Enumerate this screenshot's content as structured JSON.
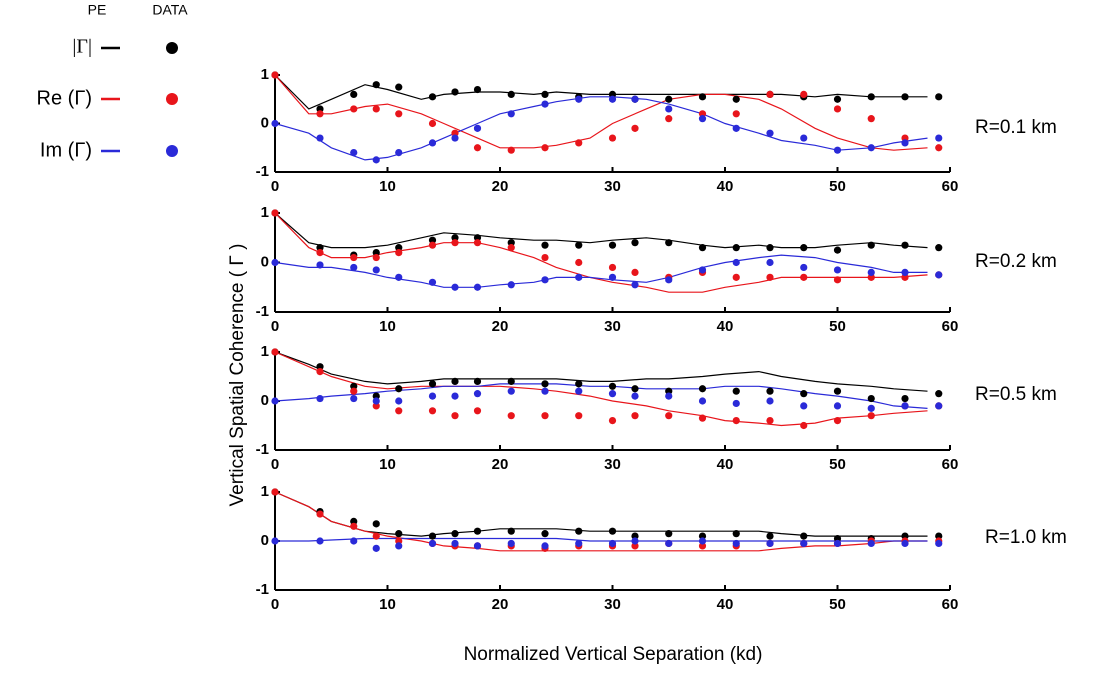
{
  "legend": {
    "pe_header": "PE",
    "data_header": "DATA",
    "entries": [
      {
        "label": "|Γ|",
        "color": "#000000"
      },
      {
        "label": "Re (Γ)",
        "color": "#e8151b"
      },
      {
        "label": "Im (Γ)",
        "color": "#2a2ad8"
      }
    ]
  },
  "ylabel": "Vertical Spatial Coherence ( Γ )",
  "xlabel": "Normalized Vertical Separation (kd)",
  "chart_data": [
    {
      "type": "line",
      "annotation": "R=0.1 km",
      "xlim": [
        0,
        60
      ],
      "ylim": [
        -1,
        1
      ],
      "xticks": [
        0,
        10,
        20,
        30,
        40,
        50,
        60
      ],
      "yticks": [
        -1,
        0,
        1
      ],
      "x": [
        0,
        3,
        5,
        8,
        10,
        13,
        15,
        18,
        20,
        23,
        25,
        28,
        30,
        33,
        35,
        38,
        40,
        43,
        45,
        48,
        50,
        53,
        55,
        58
      ],
      "series": [
        {
          "color": "#000000",
          "values": [
            1,
            0.3,
            0.5,
            0.8,
            0.7,
            0.5,
            0.6,
            0.65,
            0.65,
            0.6,
            0.65,
            0.6,
            0.6,
            0.6,
            0.6,
            0.6,
            0.6,
            0.6,
            0.6,
            0.55,
            0.6,
            0.55,
            0.55,
            0.55
          ]
        },
        {
          "color": "#e8151b",
          "values": [
            1,
            0.2,
            0.2,
            0.35,
            0.4,
            0.2,
            0,
            -0.3,
            -0.5,
            -0.5,
            -0.45,
            -0.3,
            0,
            0.3,
            0.5,
            0.6,
            0.6,
            0.5,
            0.3,
            -0.1,
            -0.3,
            -0.5,
            -0.55,
            -0.5
          ]
        },
        {
          "color": "#2a2ad8",
          "values": [
            0,
            -0.2,
            -0.5,
            -0.75,
            -0.7,
            -0.5,
            -0.3,
            0,
            0.2,
            0.35,
            0.45,
            0.55,
            0.55,
            0.5,
            0.4,
            0.2,
            0,
            -0.2,
            -0.35,
            -0.45,
            -0.55,
            -0.5,
            -0.4,
            -0.3
          ]
        }
      ],
      "points": {
        "x": [
          0,
          4,
          7,
          9,
          11,
          14,
          16,
          18,
          21,
          24,
          27,
          30,
          32,
          35,
          38,
          41,
          44,
          47,
          50,
          53,
          56,
          59
        ],
        "series": [
          {
            "color": "#000000",
            "values": [
              1,
              0.3,
              0.6,
              0.8,
              0.75,
              0.55,
              0.65,
              0.7,
              0.6,
              0.6,
              0.55,
              0.6,
              0.5,
              0.5,
              0.55,
              0.5,
              0.6,
              0.55,
              0.5,
              0.55,
              0.55,
              0.55
            ]
          },
          {
            "color": "#e8151b",
            "values": [
              1,
              0.2,
              0.3,
              0.3,
              0.2,
              0,
              -0.2,
              -0.5,
              -0.55,
              -0.5,
              -0.4,
              -0.3,
              -0.1,
              0.1,
              0.2,
              0.2,
              0.6,
              0.6,
              0.3,
              0.1,
              -0.3,
              -0.5
            ]
          },
          {
            "color": "#2a2ad8",
            "values": [
              0,
              -0.3,
              -0.6,
              -0.75,
              -0.6,
              -0.4,
              -0.3,
              -0.1,
              0.2,
              0.4,
              0.5,
              0.5,
              0.5,
              0.3,
              0.1,
              -0.1,
              -0.2,
              -0.3,
              -0.55,
              -0.5,
              -0.4,
              -0.3
            ]
          }
        ]
      }
    },
    {
      "type": "line",
      "annotation": "R=0.2 km",
      "xlim": [
        0,
        60
      ],
      "ylim": [
        -1,
        1
      ],
      "xticks": [
        0,
        10,
        20,
        30,
        40,
        50,
        60
      ],
      "yticks": [
        -1,
        0,
        1
      ],
      "x": [
        0,
        3,
        5,
        8,
        10,
        13,
        15,
        18,
        20,
        23,
        25,
        28,
        30,
        33,
        35,
        38,
        40,
        43,
        45,
        48,
        50,
        53,
        55,
        58
      ],
      "series": [
        {
          "color": "#000000",
          "values": [
            1,
            0.4,
            0.3,
            0.3,
            0.35,
            0.5,
            0.6,
            0.55,
            0.5,
            0.45,
            0.45,
            0.4,
            0.45,
            0.5,
            0.45,
            0.35,
            0.3,
            0.35,
            0.3,
            0.3,
            0.35,
            0.4,
            0.35,
            0.3
          ]
        },
        {
          "color": "#e8151b",
          "values": [
            1,
            0.3,
            0.1,
            0.1,
            0.2,
            0.3,
            0.4,
            0.4,
            0.3,
            0.1,
            -0.1,
            -0.3,
            -0.4,
            -0.5,
            -0.6,
            -0.6,
            -0.5,
            -0.4,
            -0.3,
            -0.3,
            -0.3,
            -0.3,
            -0.3,
            -0.25
          ]
        },
        {
          "color": "#2a2ad8",
          "values": [
            0,
            -0.1,
            -0.1,
            -0.2,
            -0.3,
            -0.4,
            -0.5,
            -0.5,
            -0.45,
            -0.4,
            -0.3,
            -0.3,
            -0.35,
            -0.4,
            -0.3,
            -0.1,
            0,
            0.1,
            0.15,
            0.1,
            0,
            -0.1,
            -0.2,
            -0.2
          ]
        }
      ],
      "points": {
        "x": [
          0,
          4,
          7,
          9,
          11,
          14,
          16,
          18,
          21,
          24,
          27,
          30,
          32,
          35,
          38,
          41,
          44,
          47,
          50,
          53,
          56,
          59
        ],
        "series": [
          {
            "color": "#000000",
            "values": [
              1,
              0.3,
              0.15,
              0.2,
              0.3,
              0.45,
              0.5,
              0.5,
              0.4,
              0.35,
              0.35,
              0.35,
              0.4,
              0.4,
              0.3,
              0.3,
              0.3,
              0.3,
              0.25,
              0.35,
              0.35,
              0.3
            ]
          },
          {
            "color": "#e8151b",
            "values": [
              1,
              0.2,
              0.1,
              0.1,
              0.2,
              0.35,
              0.4,
              0.4,
              0.3,
              0.1,
              0,
              -0.1,
              -0.2,
              -0.3,
              -0.2,
              -0.3,
              -0.3,
              -0.3,
              -0.35,
              -0.3,
              -0.3,
              -0.25
            ]
          },
          {
            "color": "#2a2ad8",
            "values": [
              0,
              -0.05,
              -0.1,
              -0.15,
              -0.3,
              -0.4,
              -0.5,
              -0.5,
              -0.45,
              -0.35,
              -0.3,
              -0.3,
              -0.45,
              -0.35,
              -0.15,
              0,
              0,
              -0.1,
              -0.15,
              -0.2,
              -0.2,
              -0.25
            ]
          }
        ]
      }
    },
    {
      "type": "line",
      "annotation": "R=0.5 km",
      "xlim": [
        0,
        60
      ],
      "ylim": [
        -1,
        1
      ],
      "xticks": [
        0,
        10,
        20,
        30,
        40,
        50,
        60
      ],
      "yticks": [
        -1,
        0,
        1
      ],
      "x": [
        0,
        3,
        5,
        8,
        10,
        13,
        15,
        18,
        20,
        23,
        25,
        28,
        30,
        33,
        35,
        38,
        40,
        43,
        45,
        48,
        50,
        53,
        55,
        58
      ],
      "series": [
        {
          "color": "#000000",
          "values": [
            1,
            0.75,
            0.55,
            0.4,
            0.35,
            0.4,
            0.45,
            0.45,
            0.45,
            0.45,
            0.45,
            0.4,
            0.4,
            0.45,
            0.45,
            0.5,
            0.55,
            0.6,
            0.5,
            0.4,
            0.35,
            0.3,
            0.25,
            0.2
          ]
        },
        {
          "color": "#e8151b",
          "values": [
            1,
            0.7,
            0.5,
            0.3,
            0.25,
            0.3,
            0.3,
            0.3,
            0.3,
            0.25,
            0.2,
            0.1,
            0,
            -0.1,
            -0.2,
            -0.3,
            -0.4,
            -0.45,
            -0.5,
            -0.45,
            -0.35,
            -0.3,
            -0.25,
            -0.2
          ]
        },
        {
          "color": "#2a2ad8",
          "values": [
            0,
            0.05,
            0.1,
            0.15,
            0.2,
            0.25,
            0.3,
            0.3,
            0.35,
            0.35,
            0.35,
            0.3,
            0.3,
            0.25,
            0.25,
            0.25,
            0.3,
            0.3,
            0.25,
            0.15,
            0.1,
            0,
            -0.1,
            -0.15
          ]
        }
      ],
      "points": {
        "x": [
          0,
          4,
          7,
          9,
          11,
          14,
          16,
          18,
          21,
          24,
          27,
          30,
          32,
          35,
          38,
          41,
          44,
          47,
          50,
          53,
          56,
          59
        ],
        "series": [
          {
            "color": "#000000",
            "values": [
              1,
              0.7,
              0.3,
              0.1,
              0.25,
              0.35,
              0.4,
              0.4,
              0.4,
              0.35,
              0.35,
              0.3,
              0.25,
              0.2,
              0.25,
              0.2,
              0.2,
              0.15,
              0.2,
              0.05,
              0.05,
              0.15
            ]
          },
          {
            "color": "#e8151b",
            "values": [
              1,
              0.6,
              0.2,
              -0.1,
              -0.2,
              -0.2,
              -0.3,
              -0.2,
              -0.3,
              -0.3,
              -0.3,
              -0.4,
              -0.3,
              -0.3,
              -0.35,
              -0.4,
              -0.4,
              -0.5,
              -0.4,
              -0.3,
              -0.1,
              -0.1
            ]
          },
          {
            "color": "#2a2ad8",
            "values": [
              0,
              0.05,
              0.05,
              0,
              0,
              0.1,
              0.1,
              0.15,
              0.2,
              0.2,
              0.2,
              0.15,
              0.1,
              0.1,
              0,
              -0.05,
              0,
              -0.1,
              -0.1,
              -0.15,
              -0.1,
              -0.1
            ]
          }
        ]
      }
    },
    {
      "type": "line",
      "annotation": "R=1.0 km",
      "xlim": [
        0,
        60
      ],
      "ylim": [
        -1,
        1
      ],
      "xticks": [
        0,
        10,
        20,
        30,
        40,
        50,
        60
      ],
      "yticks": [
        -1,
        0,
        1
      ],
      "x": [
        0,
        3,
        5,
        8,
        10,
        13,
        15,
        18,
        20,
        23,
        25,
        28,
        30,
        33,
        35,
        38,
        40,
        43,
        45,
        48,
        50,
        53,
        55,
        58
      ],
      "series": [
        {
          "color": "#000000",
          "values": [
            1,
            0.7,
            0.4,
            0.2,
            0.15,
            0.1,
            0.15,
            0.2,
            0.25,
            0.25,
            0.25,
            0.2,
            0.2,
            0.2,
            0.2,
            0.2,
            0.2,
            0.2,
            0.15,
            0.1,
            0.1,
            0.1,
            0.1,
            0.1
          ]
        },
        {
          "color": "#e8151b",
          "values": [
            1,
            0.7,
            0.4,
            0.2,
            0.1,
            0,
            -0.1,
            -0.15,
            -0.2,
            -0.2,
            -0.2,
            -0.2,
            -0.2,
            -0.2,
            -0.2,
            -0.2,
            -0.2,
            -0.2,
            -0.15,
            -0.1,
            -0.1,
            -0.05,
            0,
            0
          ]
        },
        {
          "color": "#2a2ad8",
          "values": [
            0,
            0,
            0.02,
            0.05,
            0.05,
            0.05,
            0.05,
            0.05,
            0.05,
            0.05,
            0.05,
            0,
            0,
            0,
            0,
            0,
            0,
            0,
            0,
            0,
            0,
            0,
            0,
            0
          ]
        }
      ],
      "points": {
        "x": [
          0,
          4,
          7,
          9,
          11,
          14,
          16,
          18,
          21,
          24,
          27,
          30,
          32,
          35,
          38,
          41,
          44,
          47,
          50,
          53,
          56,
          59
        ],
        "series": [
          {
            "color": "#000000",
            "values": [
              1,
              0.6,
              0.4,
              0.35,
              0.15,
              0.1,
              0.15,
              0.2,
              0.2,
              0.15,
              0.2,
              0.2,
              0.1,
              0.15,
              0.1,
              0.15,
              0.1,
              0.1,
              0.05,
              0.05,
              0.1,
              0.1
            ]
          },
          {
            "color": "#e8151b",
            "values": [
              1,
              0.55,
              0.3,
              0.1,
              0,
              -0.05,
              -0.1,
              -0.1,
              -0.1,
              -0.15,
              -0.1,
              -0.1,
              -0.1,
              -0.05,
              -0.1,
              -0.1,
              -0.05,
              -0.05,
              -0.05,
              0,
              0,
              0
            ]
          },
          {
            "color": "#2a2ad8",
            "values": [
              0,
              0,
              0,
              -0.15,
              -0.1,
              -0.05,
              -0.05,
              -0.1,
              -0.05,
              -0.1,
              -0.05,
              -0.05,
              0,
              -0.05,
              0,
              -0.05,
              -0.05,
              -0.05,
              -0.05,
              -0.05,
              -0.05,
              -0.05
            ]
          }
        ]
      }
    }
  ]
}
